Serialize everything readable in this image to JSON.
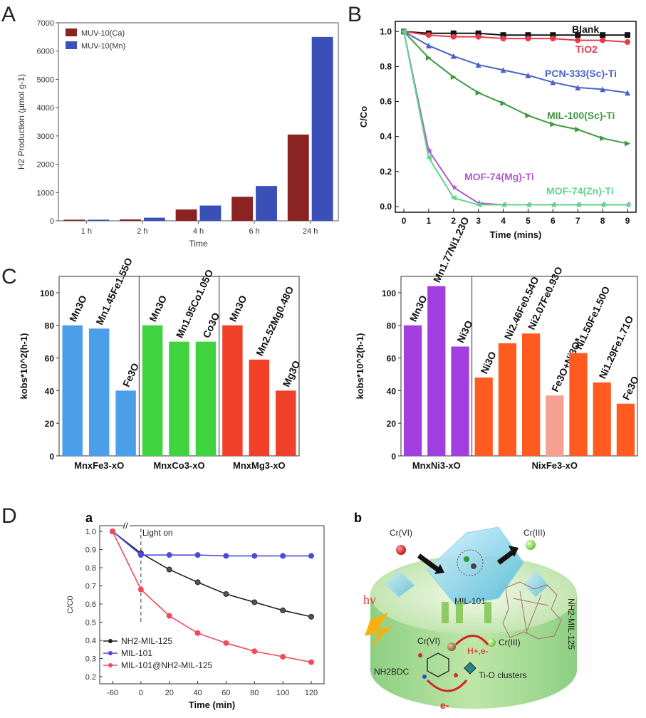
{
  "panels": {
    "A": "A",
    "B": "B",
    "C": "C",
    "D": "D",
    "Da": "a",
    "Db": "b"
  },
  "chart_data": [
    {
      "id": "A",
      "type": "bar",
      "xlabel": "Time",
      "ylabel": "H2 Production (µmol g-1)",
      "ylim": [
        0,
        7000
      ],
      "yticks": [
        0,
        1000,
        2000,
        3000,
        4000,
        5000,
        6000,
        7000
      ],
      "categories": [
        "1 h",
        "2 h",
        "4 h",
        "6 h",
        "24 h"
      ],
      "series": [
        {
          "name": "MUV-10(Ca)",
          "color": "#8b2323",
          "values": [
            40,
            50,
            400,
            850,
            3050
          ]
        },
        {
          "name": "MUV-10(Mn)",
          "color": "#3a4fb8",
          "values": [
            40,
            110,
            540,
            1230,
            6500
          ]
        }
      ],
      "legend": "top-left"
    },
    {
      "id": "B",
      "type": "line",
      "xlabel": "Time (mins)",
      "ylabel": "C/Co",
      "xlim": [
        0,
        9
      ],
      "ylim": [
        0,
        1.05
      ],
      "xticks": [
        0,
        1,
        2,
        3,
        4,
        5,
        6,
        7,
        8,
        9
      ],
      "yticks": [
        0.0,
        0.2,
        0.4,
        0.6,
        0.8,
        1.0
      ],
      "x": [
        0,
        1,
        2,
        3,
        4,
        5,
        6,
        7,
        8,
        9
      ],
      "series": [
        {
          "name": "Blank",
          "color": "#111111",
          "marker": "square",
          "values": [
            1.0,
            0.99,
            0.99,
            0.99,
            0.98,
            0.98,
            0.98,
            0.98,
            0.98,
            0.98
          ]
        },
        {
          "name": "TiO2",
          "color": "#e83a4a",
          "marker": "circle",
          "values": [
            1.0,
            0.98,
            0.97,
            0.97,
            0.96,
            0.96,
            0.96,
            0.95,
            0.95,
            0.94
          ]
        },
        {
          "name": "PCN-333(Sc)-Ti",
          "color": "#4a63c9",
          "marker": "triangle",
          "values": [
            1.0,
            0.92,
            0.86,
            0.81,
            0.78,
            0.75,
            0.71,
            0.68,
            0.67,
            0.65
          ]
        },
        {
          "name": "MIL-100(Sc)-Ti",
          "color": "#3f9a3f",
          "marker": "triangle-right",
          "values": [
            1.0,
            0.85,
            0.74,
            0.65,
            0.59,
            0.52,
            0.47,
            0.44,
            0.39,
            0.36
          ]
        },
        {
          "name": "MOF-74(Mg)-Ti",
          "color": "#b05ad0",
          "marker": "star",
          "values": [
            1.0,
            0.32,
            0.11,
            0.02,
            0.01,
            0.01,
            0.01,
            0.01,
            0.01,
            0.01
          ]
        },
        {
          "name": "MOF-74(Zn)-Ti",
          "color": "#5fd68a",
          "marker": "triangle-left",
          "values": [
            1.0,
            0.28,
            0.05,
            0.01,
            0.01,
            0.01,
            0.01,
            0.01,
            0.01,
            0.01
          ]
        }
      ]
    },
    {
      "id": "C1",
      "type": "bar",
      "ylabel": "kobs*10^2(h-1)",
      "ylim": [
        0,
        110
      ],
      "yticks": [
        0,
        20,
        40,
        60,
        80,
        100
      ],
      "groups": [
        {
          "name": "MnxFe3-xO",
          "color": "#4b9fe8",
          "bars": [
            {
              "label": "Mn3O",
              "value": 80
            },
            {
              "label": "Mn1.45Fe1.55O",
              "value": 78
            },
            {
              "label": "Fe3O",
              "value": 40
            }
          ]
        },
        {
          "name": "MnxCo3-xO",
          "color": "#3fd43f",
          "bars": [
            {
              "label": "Mn3O",
              "value": 80
            },
            {
              "label": "Mn1.95Co1.05O",
              "value": 70
            },
            {
              "label": "Co3O",
              "value": 70
            }
          ]
        },
        {
          "name": "MnxMg3-xO",
          "color": "#f0402a",
          "bars": [
            {
              "label": "Mn3O",
              "value": 80
            },
            {
              "label": "Mn2.52Mg0.48O",
              "value": 59
            },
            {
              "label": "Mg3O",
              "value": 40
            }
          ]
        }
      ]
    },
    {
      "id": "C2",
      "type": "bar",
      "ylabel": "kobs*10^2(h-1)",
      "ylim": [
        0,
        110
      ],
      "yticks": [
        0,
        20,
        40,
        60,
        80,
        100
      ],
      "groups": [
        {
          "name": "MnxNi3-xO",
          "color": "#a23de0",
          "bars": [
            {
              "label": "Mn3O",
              "value": 80
            },
            {
              "label": "Mn1.77Ni1.23O",
              "value": 104
            },
            {
              "label": "Ni3O",
              "value": 67
            }
          ]
        },
        {
          "name": "NixFe3-xO",
          "color": "#ff5a1f",
          "bars": [
            {
              "label": "Ni3O",
              "value": 48
            },
            {
              "label": "Ni2.46Fe0.54O",
              "value": 69
            },
            {
              "label": "Ni2.07Fe0.93O",
              "value": 75
            },
            {
              "label": "Fe3O+Ni3O*",
              "value": 37,
              "color": "#f5a090"
            },
            {
              "label": "Ni1.50Fe1.50O",
              "value": 63
            },
            {
              "label": "Ni1.29Fe1.71O",
              "value": 45
            },
            {
              "label": "Fe3O",
              "value": 32
            }
          ]
        }
      ]
    },
    {
      "id": "Da",
      "type": "line",
      "xlabel": "Time (min)",
      "ylabel": "C/C0",
      "xlim": [
        -60,
        120
      ],
      "ylim": [
        0.2,
        1.0
      ],
      "xticks": [
        -60,
        0,
        20,
        40,
        60,
        80,
        100,
        120
      ],
      "yticks": [
        0.2,
        0.3,
        0.4,
        0.5,
        0.6,
        0.7,
        0.8,
        0.9,
        1.0
      ],
      "annotation": "Light on",
      "series": [
        {
          "name": "NH2-MIL-125",
          "color": "#222222",
          "x": [
            -60,
            0,
            20,
            40,
            60,
            80,
            100,
            120
          ],
          "values": [
            1.0,
            0.88,
            0.79,
            0.72,
            0.655,
            0.61,
            0.565,
            0.53
          ]
        },
        {
          "name": "MIL-101",
          "color": "#4a4adc",
          "x": [
            -60,
            0,
            20,
            40,
            60,
            80,
            100,
            120
          ],
          "values": [
            1.0,
            0.87,
            0.87,
            0.87,
            0.865,
            0.865,
            0.865,
            0.865
          ]
        },
        {
          "name": "MIL-101@NH2-MIL-125",
          "color": "#f04a5a",
          "x": [
            -60,
            0,
            20,
            40,
            60,
            80,
            100,
            120
          ],
          "values": [
            1.0,
            0.68,
            0.535,
            0.44,
            0.385,
            0.34,
            0.31,
            0.28
          ]
        }
      ]
    }
  ],
  "scheme": {
    "cr6_top": "Cr(VI)",
    "cr3_top": "Cr(III)",
    "mil101": "MIL-101",
    "nh2mil125": "NH2-MIL-125",
    "hv": "hv",
    "cr6_low": "Cr(VI)",
    "cr3_low": "Cr(III)",
    "he": "H+,e-",
    "nh2bdc": "NH2BDC",
    "tio": "Ti-O clusters",
    "e": "e-"
  }
}
